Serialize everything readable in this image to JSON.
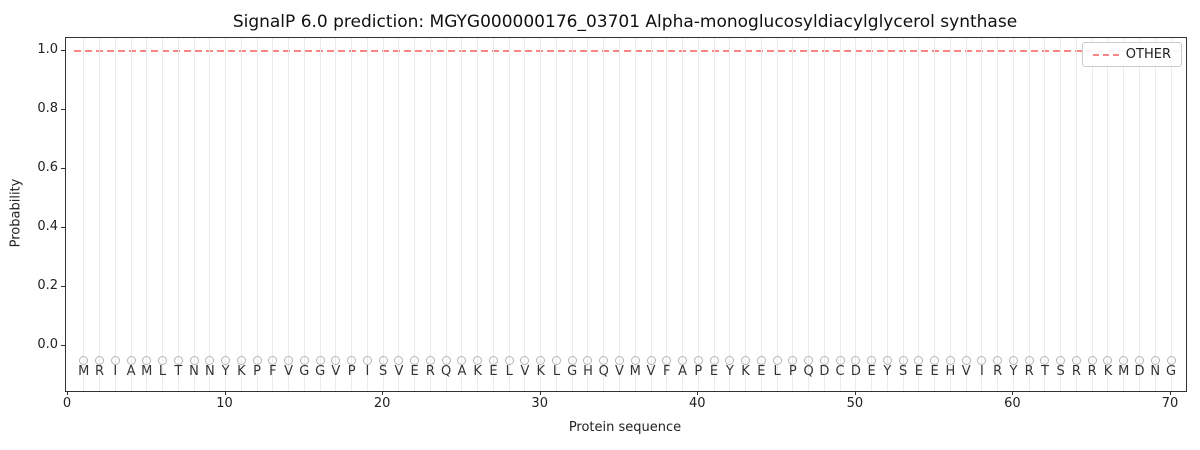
{
  "chart_data": {
    "type": "line",
    "title": "SignalP 6.0 prediction: MGYG000000176_03701 Alpha-monoglucosyldiacylglycerol synthase",
    "xlabel": "Protein sequence",
    "ylabel": "Probability",
    "xlim": [
      -0.2,
      70.9
    ],
    "ylim": [
      -0.16,
      1.07
    ],
    "xticks": [
      0,
      10,
      20,
      30,
      40,
      50,
      60,
      70
    ],
    "yticks": [
      "0.0",
      "0.2",
      "0.4",
      "0.6",
      "0.8",
      "1.0"
    ],
    "grid": "vertical-per-residue",
    "legend_position": "upper right",
    "sequence": "MRIAMLTNNYKPFVGGVPISVERQAKELVKLGHQVMVFAPEYKELPQDCDEYSEEHVIRYRTSRRKMDNG",
    "series": [
      {
        "name": "OTHER",
        "style": "dashed",
        "color": "#f98585",
        "x_range": [
          1,
          70
        ],
        "constant_y": 1.0
      }
    ],
    "marker_series": {
      "description": "open circle above each residue letter",
      "value": -0.05,
      "positions": "1-70",
      "color": "#b5b5b5"
    }
  }
}
